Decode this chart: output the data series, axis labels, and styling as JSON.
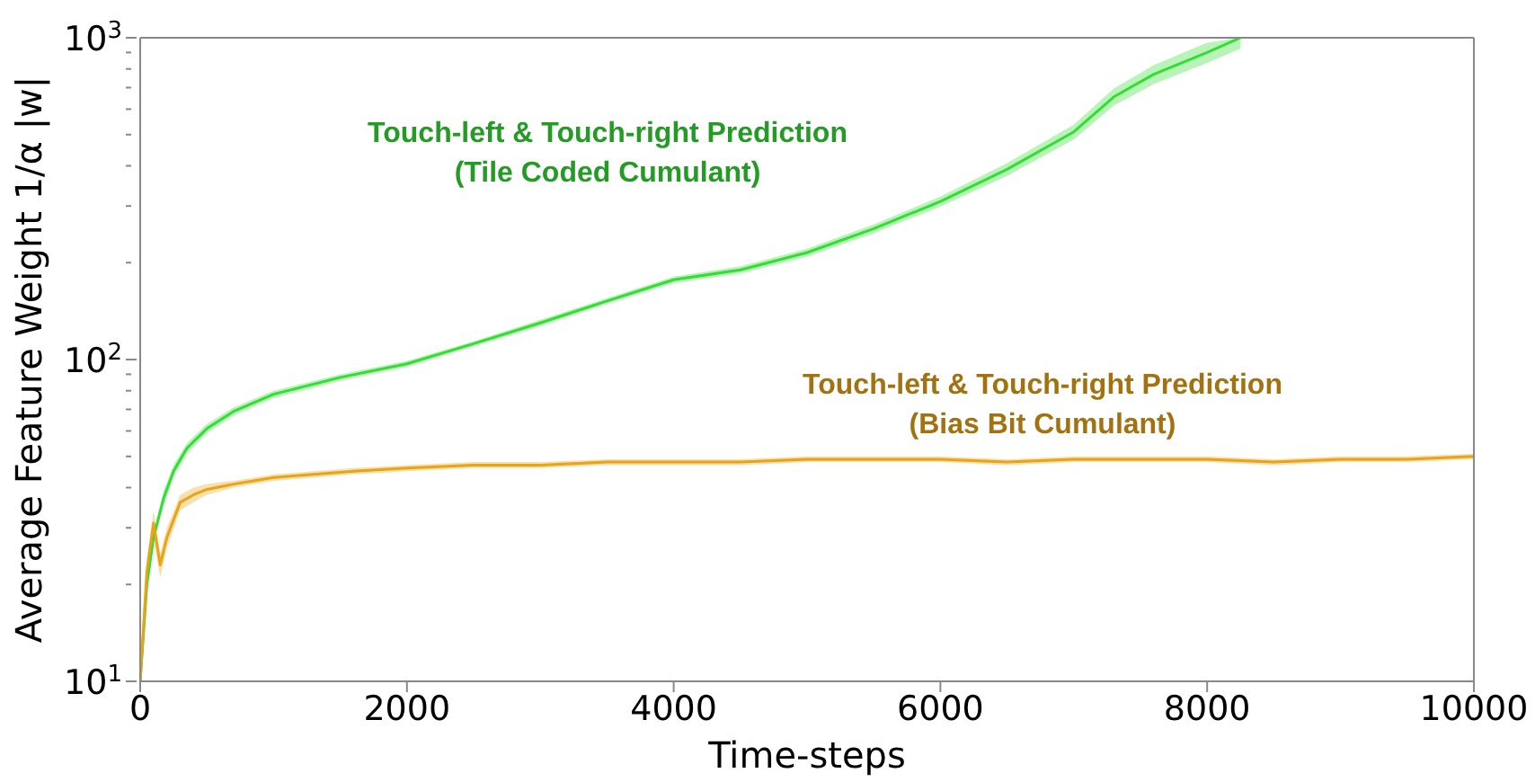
{
  "chart_data": {
    "type": "line",
    "xlabel": "Time-steps",
    "ylabel": "Average Feature Weight 1/α |w|",
    "log": "y",
    "xlim": [
      0,
      10000
    ],
    "xticks": [
      0,
      2000,
      4000,
      6000,
      8000,
      10000
    ],
    "ylim": [
      10,
      1000
    ],
    "yticks": [
      {
        "value": 10,
        "label": "10$^{1}$"
      },
      {
        "value": 20,
        "label": null
      },
      {
        "value": 30,
        "label": null
      },
      {
        "value": 40,
        "label": null
      },
      {
        "value": 50,
        "label": null
      },
      {
        "value": 60,
        "label": null
      },
      {
        "value": 70,
        "label": null
      },
      {
        "value": 80,
        "label": null
      },
      {
        "value": 90,
        "label": null
      },
      {
        "value": 100,
        "label": "10$^{2}$"
      },
      {
        "value": 200,
        "label": null
      },
      {
        "value": 300,
        "label": null
      },
      {
        "value": 400,
        "label": null
      },
      {
        "value": 500,
        "label": null
      },
      {
        "value": 600,
        "label": null
      },
      {
        "value": 700,
        "label": null
      },
      {
        "value": 800,
        "label": null
      },
      {
        "value": 900,
        "label": null
      },
      {
        "value": 1000,
        "label": "10$^{3}$"
      }
    ],
    "series": [
      {
        "name": "Touch-left & Touch-right Prediction\n(Tile Coded Cumulant)",
        "color": "#33dd33",
        "x": [
          0,
          50,
          100,
          175,
          250,
          350,
          500,
          700,
          1000,
          1500,
          2000,
          2500,
          3000,
          3500,
          4000,
          4500,
          5000,
          5500,
          6000,
          6500,
          7000,
          7300,
          7600,
          8000,
          8250
        ],
        "values": [
          10,
          20,
          28,
          37,
          45,
          53,
          61,
          69,
          78,
          88,
          97,
          112,
          130,
          152,
          177,
          190,
          215,
          255,
          310,
          390,
          510,
          655,
          770,
          900,
          1000
        ],
        "lower": [
          10,
          19,
          27,
          35,
          43,
          51,
          59,
          67,
          76,
          86,
          95,
          110,
          127,
          149,
          173,
          185,
          209,
          247,
          299,
          372,
          483,
          615,
          718,
          835,
          925
        ],
        "upper": [
          10,
          21,
          29,
          39,
          47,
          55,
          63,
          71,
          80,
          90,
          99,
          114,
          133,
          155,
          181,
          195,
          221,
          263,
          321,
          408,
          537,
          695,
          822,
          965,
          1000
        ]
      },
      {
        "name": "Touch-left & Touch-right Prediction\n(Bias Bit Cumulant)",
        "color": "#e8a317",
        "x": [
          0,
          50,
          100,
          150,
          200,
          300,
          400,
          500,
          700,
          1000,
          1300,
          1600,
          2000,
          2500,
          3000,
          3500,
          4000,
          4500,
          5000,
          5500,
          6000,
          6500,
          7000,
          7500,
          8000,
          8500,
          9000,
          9500,
          10000
        ],
        "values": [
          10,
          22,
          31,
          23,
          28,
          36,
          38,
          39.5,
          41,
          43,
          44,
          45,
          46,
          47,
          47,
          48,
          48,
          48,
          49,
          49,
          49,
          48,
          49,
          49,
          49,
          48,
          49,
          49,
          50
        ],
        "lower": [
          10,
          20,
          28,
          21,
          26,
          34,
          36,
          38,
          40,
          42,
          43,
          44,
          45,
          46,
          46,
          47,
          47,
          47,
          48,
          48,
          48,
          47,
          48,
          48,
          48,
          47,
          48,
          48,
          49
        ],
        "upper": [
          10,
          24,
          34,
          25,
          30,
          38,
          40,
          41,
          42,
          44,
          45,
          46,
          47,
          48,
          48,
          49,
          49,
          49,
          50,
          50,
          50,
          49,
          50,
          50,
          50,
          49,
          50,
          50,
          51
        ]
      }
    ]
  }
}
